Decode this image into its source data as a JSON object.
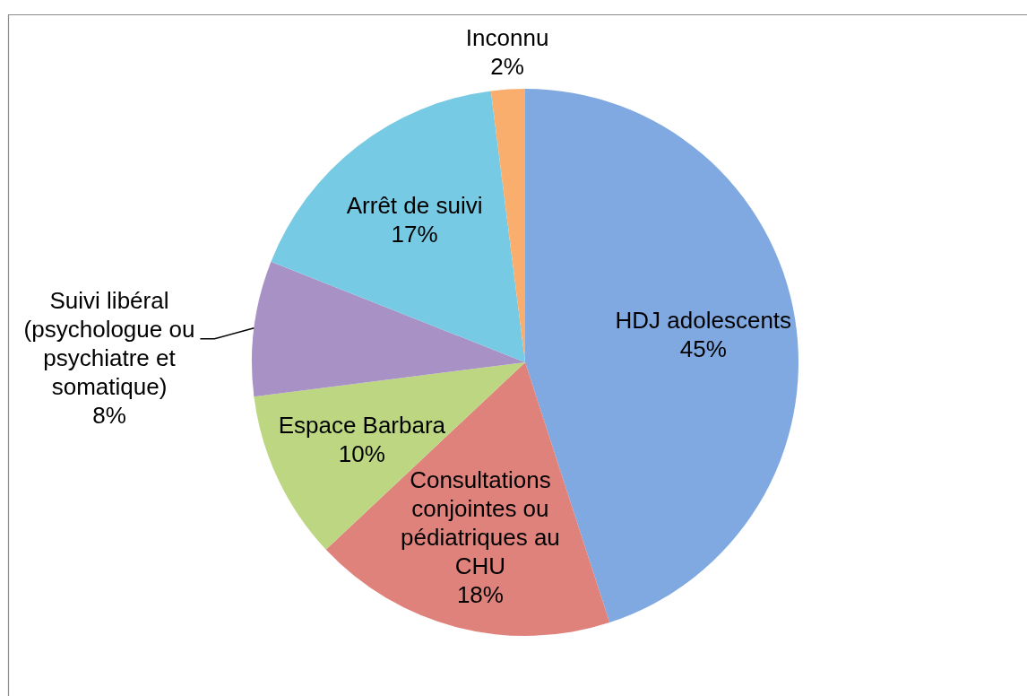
{
  "chart_data": {
    "type": "pie",
    "categories": [
      "HDJ adolescents",
      "Consultations conjointes ou pédiatriques au CHU",
      "Espace Barbara",
      "Suivi libéral (psychologue ou psychiatre et somatique)",
      "Arrêt de suivi",
      "Inconnu"
    ],
    "values": [
      45,
      18,
      10,
      8,
      17,
      2
    ],
    "value_labels": [
      "45%",
      "18%",
      "10%",
      "8%",
      "17%",
      "2%"
    ],
    "colors": [
      "#7fa9e0",
      "#e0827c",
      "#bcd682",
      "#a892c5",
      "#77cae3",
      "#f9ae6d"
    ]
  }
}
